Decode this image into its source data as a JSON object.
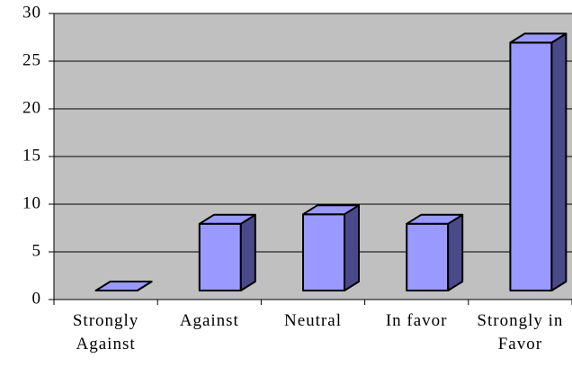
{
  "chart_data": {
    "type": "bar3d",
    "categories": [
      "Strongly Against",
      "Against",
      "Neutral",
      "In favor",
      "Strongly in Favor"
    ],
    "values": [
      0,
      7,
      8,
      7,
      26
    ],
    "color": "#9999ff",
    "ylim": [
      0,
      30
    ],
    "yticks": [
      0,
      5,
      10,
      15,
      20,
      25,
      30
    ],
    "grid": true
  }
}
